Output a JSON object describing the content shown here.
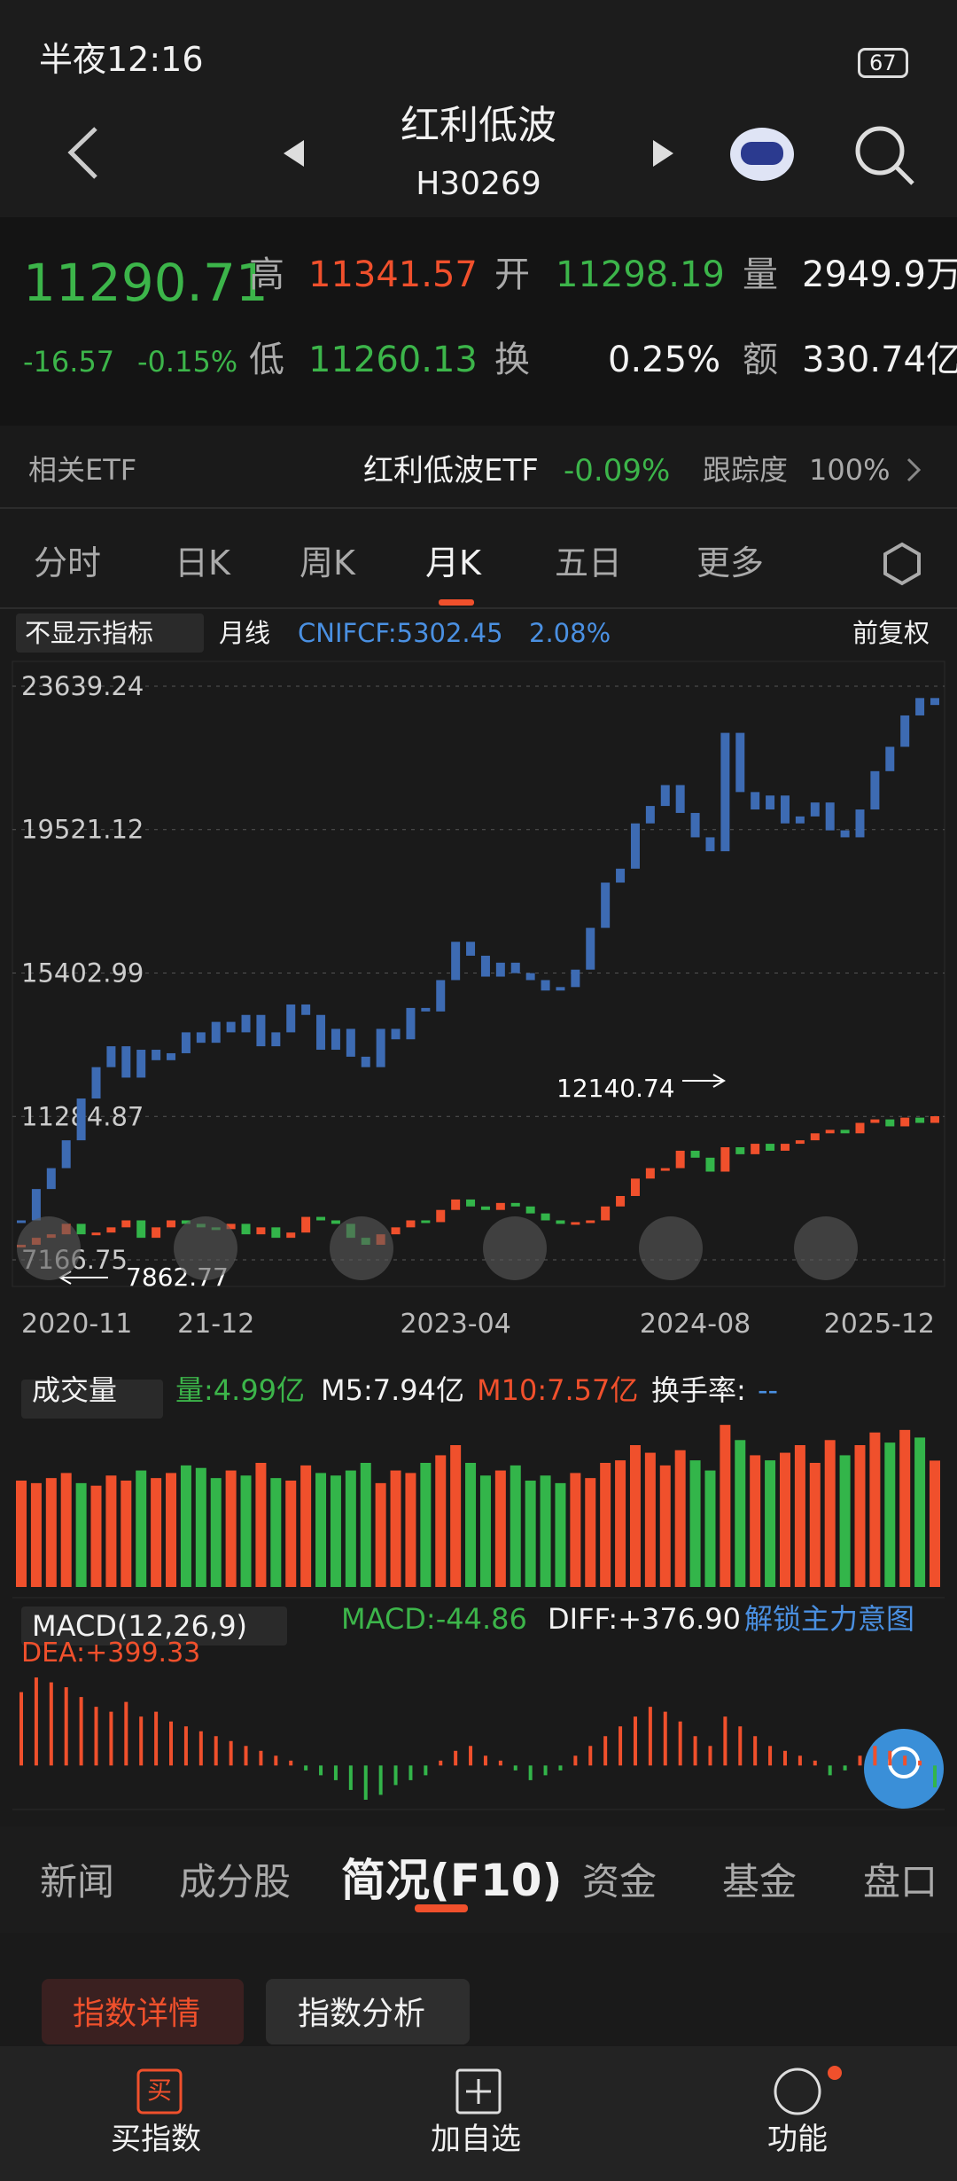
{
  "status_bar": {
    "time": "半夜12:16",
    "battery": "67"
  },
  "header": {
    "title": "红利低波",
    "code": "H30269"
  },
  "quote": {
    "price": "11290.71",
    "change": "-16.57",
    "change_pct": "-0.15%",
    "high_label": "高",
    "high": "11341.57",
    "open_label": "开",
    "open": "11298.19",
    "volume_label": "量",
    "volume": "2949.9万",
    "low_label": "低",
    "low": "11260.13",
    "turnover_label": "换",
    "turnover": "0.25%",
    "amount_label": "额",
    "amount": "330.74亿"
  },
  "etf": {
    "label": "相关ETF",
    "name": "红利低波ETF",
    "change": "-0.09%",
    "tracking_label": "跟踪度",
    "tracking": "100%"
  },
  "period_tabs": [
    "分时",
    "日K",
    "周K",
    "月K",
    "五日",
    "更多"
  ],
  "chart_toolbar": {
    "indicator": "不显示指标",
    "period": "月线",
    "compare": "CNIFCF:5302.45",
    "compare_pct": "2.08%",
    "adjust": "前复权"
  },
  "volume_header": {
    "label": "成交量",
    "volume": "量:4.99亿",
    "m5": "M5:7.94亿",
    "m10": "M10:7.57亿",
    "turnover": "换手率:",
    "turnover_value": "--"
  },
  "macd_header": {
    "label": "MACD(12,26,9)",
    "macd": "MACD:-44.86",
    "diff": "DIFF:+376.90",
    "unlock": "解锁主力意图",
    "dea": "DEA:+399.33"
  },
  "info_tabs": [
    "新闻",
    "成分股",
    "简况(F10)",
    "资金",
    "基金",
    "盘口"
  ],
  "sub_tabs": [
    "指数详情",
    "指数分析"
  ],
  "bottom_nav": {
    "buy_icon": "买",
    "buy": "买指数",
    "watch": "加自选",
    "menu": "功能"
  },
  "chart_data": [
    {
      "type": "candlestick",
      "up_color": "#f0502c",
      "down_color": "#33b54a",
      "categories": [
        "2020-11",
        null,
        null,
        null,
        null,
        null,
        null,
        null,
        null,
        null,
        null,
        null,
        null,
        "21-12",
        null,
        null,
        null,
        null,
        null,
        null,
        null,
        null,
        null,
        null,
        null,
        null,
        null,
        null,
        null,
        "2023-04",
        null,
        null,
        null,
        null,
        null,
        null,
        null,
        null,
        null,
        null,
        null,
        null,
        null,
        null,
        null,
        "2024-08",
        null,
        null,
        null,
        null,
        null,
        null,
        null,
        null,
        null,
        null,
        null,
        null,
        null,
        null,
        null,
        "2025-12"
      ],
      "ylim": [
        7166.75,
        23639.24
      ],
      "yticks": [
        7166.75,
        11284.87,
        15402.99,
        19521.12,
        23639.24
      ],
      "annotations": [
        "12140.74",
        "7862.77"
      ],
      "series": [
        {
          "color": "#3d6bb3",
          "values": [
            8300,
            9200,
            9800,
            10600,
            11800,
            12700,
            13300,
            12400,
            13200,
            12900,
            13100,
            13700,
            13400,
            14000,
            13700,
            14200,
            13300,
            13700,
            14500,
            14200,
            13200,
            13800,
            13000,
            12700,
            13800,
            13500,
            14400,
            14300,
            15200,
            16300,
            15900,
            15300,
            15700,
            15400,
            15200,
            14900,
            15000,
            15500,
            16700,
            18000,
            18400,
            19700,
            20200,
            20800,
            20000,
            19300,
            18900,
            22300,
            20600,
            20100,
            20500,
            19700,
            19900,
            20300,
            19500,
            19300,
            20100,
            21200,
            21900,
            22800,
            23300,
            23100
          ]
        },
        {
          "values": [
            7600,
            7800,
            7900,
            8200,
            7900,
            7950,
            8100,
            8300,
            7800,
            8100,
            8300,
            8200,
            8100,
            8050,
            8200,
            7900,
            8100,
            7800,
            7950,
            8400,
            8300,
            8200,
            7800,
            7600,
            7900,
            8100,
            8300,
            8250,
            8600,
            8900,
            8700,
            8600,
            8800,
            8700,
            8500,
            8300,
            8200,
            8250,
            8300,
            8700,
            9000,
            9500,
            9800,
            9800,
            10300,
            10100,
            9700,
            10400,
            10200,
            10500,
            10300,
            10500,
            10600,
            10800,
            10900,
            10800,
            11100,
            11200,
            11000,
            11250,
            11100,
            11290.71
          ]
        }
      ]
    },
    {
      "type": "bar",
      "ylim": [
        0,
        7
      ],
      "values": [
        4.2,
        4.1,
        4.3,
        4.5,
        4.1,
        4.0,
        4.4,
        4.2,
        4.6,
        4.3,
        4.5,
        4.8,
        4.7,
        4.3,
        4.6,
        4.4,
        4.9,
        4.3,
        4.2,
        4.8,
        4.5,
        4.4,
        4.6,
        4.9,
        4.1,
        4.6,
        4.5,
        4.9,
        5.2,
        5.6,
        4.9,
        4.4,
        4.6,
        4.8,
        4.2,
        4.4,
        4.1,
        4.5,
        4.3,
        4.9,
        5.0,
        5.6,
        5.3,
        4.8,
        5.4,
        5.0,
        4.6,
        6.4,
        5.8,
        5.2,
        5.0,
        5.3,
        5.6,
        4.9,
        5.8,
        5.2,
        5.6,
        6.1,
        5.7,
        6.2,
        5.9,
        4.99
      ]
    },
    {
      "type": "bar",
      "ylim": [
        -90,
        200
      ],
      "values": [
        150,
        180,
        170,
        160,
        140,
        120,
        110,
        130,
        100,
        110,
        90,
        80,
        70,
        60,
        50,
        40,
        30,
        20,
        10,
        -10,
        -20,
        -30,
        -50,
        -70,
        -60,
        -40,
        -30,
        -20,
        10,
        30,
        40,
        20,
        10,
        -10,
        -30,
        -20,
        -10,
        20,
        40,
        60,
        80,
        100,
        120,
        110,
        90,
        60,
        40,
        100,
        80,
        60,
        40,
        30,
        20,
        10,
        -20,
        -10,
        20,
        40,
        30,
        20,
        10,
        -44.86
      ]
    }
  ]
}
